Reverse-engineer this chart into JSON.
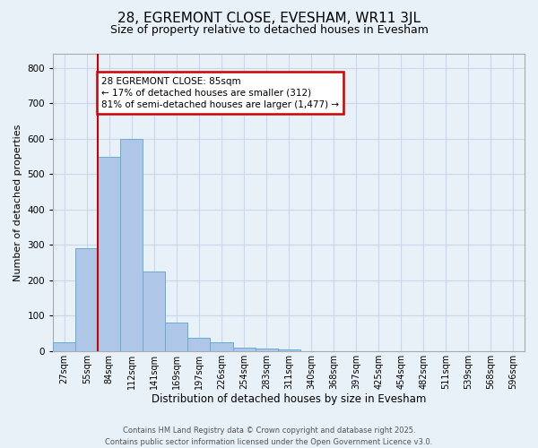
{
  "title": "28, EGREMONT CLOSE, EVESHAM, WR11 3JL",
  "subtitle": "Size of property relative to detached houses in Evesham",
  "xlabel": "Distribution of detached houses by size in Evesham",
  "ylabel": "Number of detached properties",
  "footer_line1": "Contains HM Land Registry data © Crown copyright and database right 2025.",
  "footer_line2": "Contains public sector information licensed under the Open Government Licence v3.0.",
  "categories": [
    "27sqm",
    "55sqm",
    "84sqm",
    "112sqm",
    "141sqm",
    "169sqm",
    "197sqm",
    "226sqm",
    "254sqm",
    "283sqm",
    "311sqm",
    "340sqm",
    "368sqm",
    "397sqm",
    "425sqm",
    "454sqm",
    "482sqm",
    "511sqm",
    "539sqm",
    "568sqm",
    "596sqm"
  ],
  "values": [
    25,
    290,
    550,
    600,
    225,
    80,
    38,
    25,
    10,
    8,
    5,
    0,
    0,
    0,
    0,
    0,
    0,
    0,
    0,
    0,
    0
  ],
  "bar_color": "#aec6e8",
  "bar_edge_color": "#6aaad4",
  "grid_color": "#c8d8e8",
  "background_color": "#e8f0f8",
  "red_line_index": 2,
  "annotation_line1": "28 EGREMONT CLOSE: 85sqm",
  "annotation_line2": "← 17% of detached houses are smaller (312)",
  "annotation_line3": "81% of semi-detached houses are larger (1,477) →",
  "annotation_box_facecolor": "#ffffff",
  "annotation_box_edgecolor": "#cc0000",
  "ylim_max": 840,
  "yticks": [
    0,
    100,
    200,
    300,
    400,
    500,
    600,
    700,
    800
  ],
  "title_fontsize": 11,
  "subtitle_fontsize": 9,
  "ylabel_fontsize": 8,
  "xlabel_fontsize": 8.5,
  "tick_fontsize": 7,
  "footer_fontsize": 6,
  "annot_fontsize": 7.5
}
